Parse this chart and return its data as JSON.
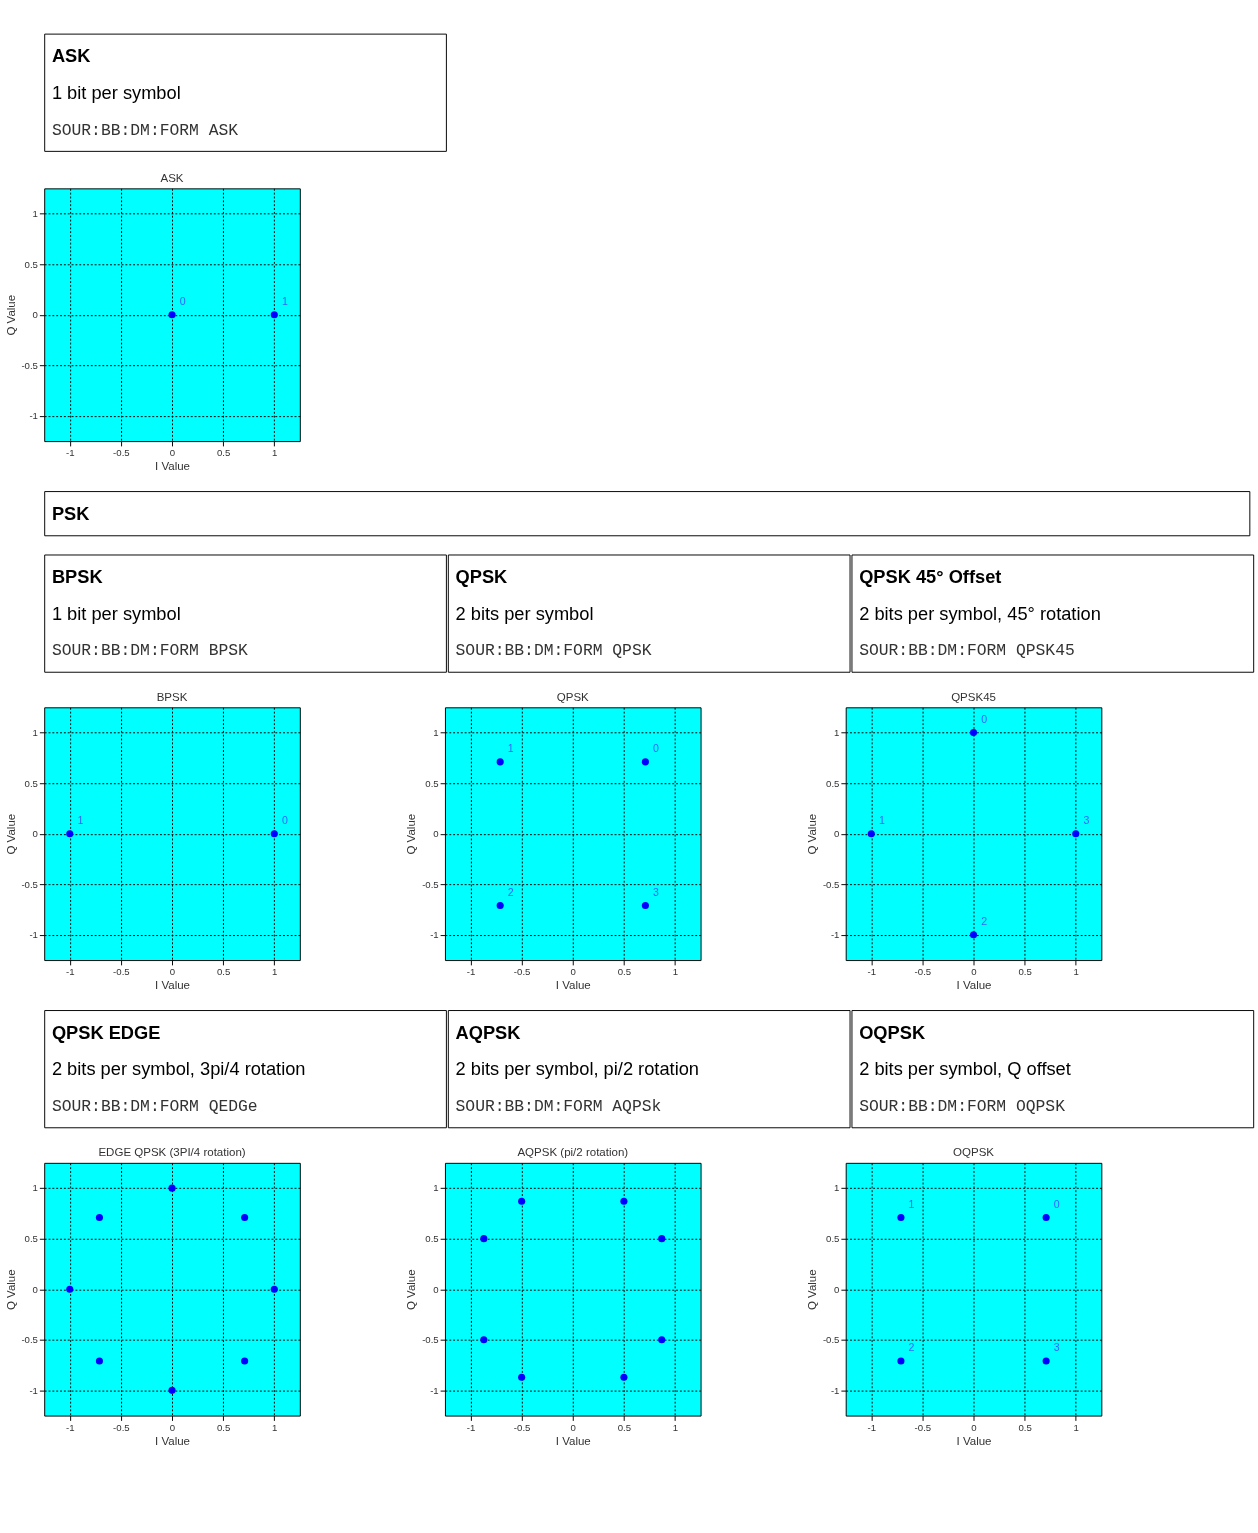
{
  "chart_data": [
    {
      "type": "other",
      "title": "ASK",
      "annotations": [
        "1 bit per symbol",
        "SOUR:BB:DM:FORM ASK"
      ]
    },
    {
      "type": "scatter",
      "title": "ASK",
      "xlabel": "I Value",
      "ylabel": "Q Value",
      "xlim": [
        -1.25,
        1.25
      ],
      "ylim": [
        -1.25,
        1.25
      ],
      "xticks": [
        -1,
        -0.5,
        0,
        0.5,
        1
      ],
      "yticks": [
        -1,
        -0.5,
        0,
        0.5,
        1
      ],
      "grid": true,
      "marker": "circle",
      "series": [
        {
          "color": "#0000ff",
          "x": [
            0,
            1
          ],
          "values": [
            0,
            0
          ]
        }
      ],
      "annotations": [
        {
          "text": "0",
          "x": 0,
          "y": 0
        },
        {
          "text": "1",
          "x": 1,
          "y": 0
        }
      ]
    },
    {
      "type": "other",
      "title": "PSK"
    },
    {
      "type": "other",
      "title": "BPSK",
      "annotations": [
        "1 bit per symbol",
        "SOUR:BB:DM:FORM BPSK"
      ]
    },
    {
      "type": "other",
      "title": "QPSK",
      "annotations": [
        "2 bits per symbol",
        "SOUR:BB:DM:FORM QPSK"
      ]
    },
    {
      "type": "other",
      "title": "QPSK 45° Offset",
      "annotations": [
        "2 bits per symbol, 45° rotation",
        "SOUR:BB:DM:FORM QPSK45"
      ]
    },
    {
      "type": "scatter",
      "title": "BPSK",
      "xlabel": "I Value",
      "ylabel": "Q Value",
      "xlim": [
        -1.25,
        1.25
      ],
      "ylim": [
        -1.25,
        1.25
      ],
      "xticks": [
        -1,
        -0.5,
        0,
        0.5,
        1
      ],
      "yticks": [
        -1,
        -0.5,
        0,
        0.5,
        1
      ],
      "grid": true,
      "marker": "circle",
      "series": [
        {
          "color": "#0000ff",
          "x": [
            1,
            -1
          ],
          "values": [
            0,
            0
          ]
        }
      ],
      "annotations": [
        {
          "text": "0",
          "x": 1,
          "y": 0
        },
        {
          "text": "1",
          "x": -1,
          "y": 0
        }
      ]
    },
    {
      "type": "scatter",
      "title": "QPSK",
      "xlabel": "I Value",
      "ylabel": "Q Value",
      "xlim": [
        -1.25,
        1.25
      ],
      "ylim": [
        -1.25,
        1.25
      ],
      "xticks": [
        -1,
        -0.5,
        0,
        0.5,
        1
      ],
      "yticks": [
        -1,
        -0.5,
        0,
        0.5,
        1
      ],
      "grid": true,
      "marker": "circle",
      "series": [
        {
          "color": "#0000ff",
          "x": [
            0.71,
            -0.71,
            -0.71,
            0.71
          ],
          "values": [
            0.71,
            0.71,
            -0.71,
            -0.71
          ]
        }
      ],
      "annotations": [
        {
          "text": "0",
          "x": 0.71,
          "y": 0.71
        },
        {
          "text": "1",
          "x": -0.71,
          "y": 0.71
        },
        {
          "text": "2",
          "x": -0.71,
          "y": -0.71
        },
        {
          "text": "3",
          "x": 0.71,
          "y": -0.71
        }
      ]
    },
    {
      "type": "scatter",
      "title": "QPSK45",
      "xlabel": "I Value",
      "ylabel": "Q Value",
      "xlim": [
        -1.25,
        1.25
      ],
      "ylim": [
        -1.25,
        1.25
      ],
      "xticks": [
        -1,
        -0.5,
        0,
        0.5,
        1
      ],
      "yticks": [
        -1,
        -0.5,
        0,
        0.5,
        1
      ],
      "grid": true,
      "marker": "circle",
      "series": [
        {
          "color": "#0000ff",
          "x": [
            0,
            -1,
            0,
            1
          ],
          "values": [
            1,
            0,
            -1,
            0
          ]
        }
      ],
      "annotations": [
        {
          "text": "0",
          "x": 0,
          "y": 1
        },
        {
          "text": "1",
          "x": -1,
          "y": 0
        },
        {
          "text": "2",
          "x": 0,
          "y": -1
        },
        {
          "text": "3",
          "x": 1,
          "y": 0
        }
      ]
    },
    {
      "type": "other",
      "title": "QPSK EDGE",
      "annotations": [
        "2 bits per symbol, 3pi/4 rotation",
        "SOUR:BB:DM:FORM QEDGe"
      ]
    },
    {
      "type": "other",
      "title": "AQPSK",
      "annotations": [
        "2 bits per symbol, pi/2 rotation",
        "SOUR:BB:DM:FORM AQPSk"
      ]
    },
    {
      "type": "other",
      "title": "OQPSK",
      "annotations": [
        "2 bits per symbol, Q offset",
        "SOUR:BB:DM:FORM OQPSK"
      ]
    },
    {
      "type": "scatter",
      "title": "EDGE QPSK (3PI/4 rotation)",
      "xlabel": "I Value",
      "ylabel": "Q Value",
      "xlim": [
        -1.25,
        1.25
      ],
      "ylim": [
        -1.25,
        1.25
      ],
      "xticks": [
        -1,
        -0.5,
        0,
        0.5,
        1
      ],
      "yticks": [
        -1,
        -0.5,
        0,
        0.5,
        1
      ],
      "grid": true,
      "marker": "circle",
      "series": [
        {
          "color": "#0000ff",
          "x": [
            1,
            0.71,
            0,
            -0.71,
            -1,
            -0.71,
            0,
            0.71
          ],
          "values": [
            0,
            0.71,
            1,
            0.71,
            0,
            -0.71,
            -1,
            -0.71
          ]
        }
      ]
    },
    {
      "type": "scatter",
      "title": "AQPSK (pi/2 rotation)",
      "xlabel": "I Value",
      "ylabel": "Q Value",
      "xlim": [
        -1.25,
        1.25
      ],
      "ylim": [
        -1.25,
        1.25
      ],
      "xticks": [
        -1,
        -0.5,
        0,
        0.5,
        1
      ],
      "yticks": [
        -1,
        -0.5,
        0,
        0.5,
        1
      ],
      "grid": true,
      "marker": "circle",
      "series": [
        {
          "color": "#0000ff",
          "x": [
            0.87,
            0.5,
            -0.5,
            -0.87,
            -0.87,
            -0.5,
            0.5,
            0.87
          ],
          "values": [
            0.5,
            0.87,
            0.87,
            0.5,
            -0.5,
            -0.87,
            -0.87,
            -0.5
          ]
        }
      ]
    },
    {
      "type": "scatter",
      "title": "OQPSK",
      "xlabel": "I Value",
      "ylabel": "Q Value",
      "xlim": [
        -1.25,
        1.25
      ],
      "ylim": [
        -1.25,
        1.25
      ],
      "xticks": [
        -1,
        -0.5,
        0,
        0.5,
        1
      ],
      "yticks": [
        -1,
        -0.5,
        0,
        0.5,
        1
      ],
      "grid": true,
      "marker": "circle",
      "series": [
        {
          "color": "#0000ff",
          "x": [
            0.71,
            -0.71,
            -0.71,
            0.71
          ],
          "values": [
            0.71,
            0.71,
            -0.71,
            -0.71
          ]
        }
      ],
      "annotations": [
        {
          "text": "0",
          "x": 0.71,
          "y": 0.71
        },
        {
          "text": "1",
          "x": -0.71,
          "y": 0.71
        },
        {
          "text": "2",
          "x": -0.71,
          "y": -0.71
        },
        {
          "text": "3",
          "x": 0.71,
          "y": -0.71
        }
      ]
    }
  ]
}
